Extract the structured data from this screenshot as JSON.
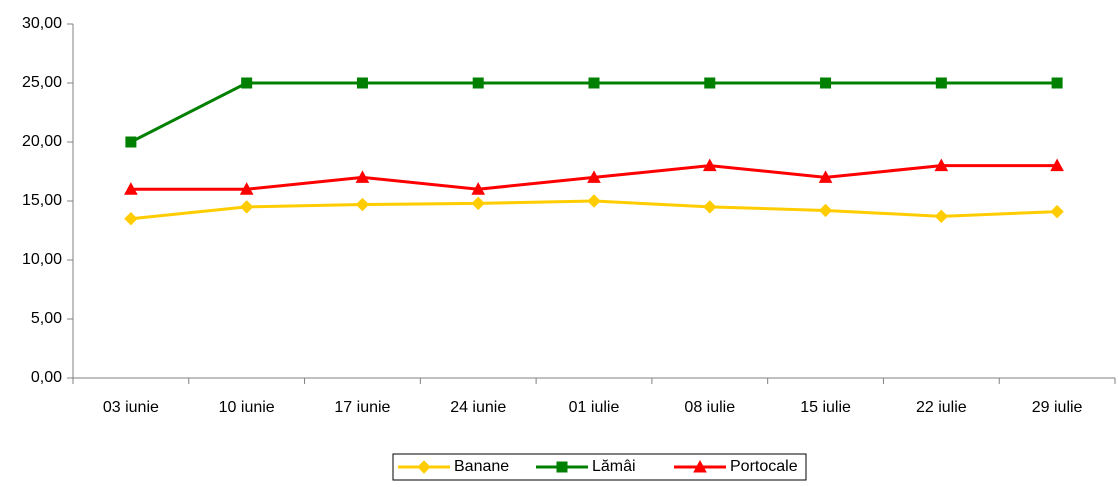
{
  "chart_data": {
    "type": "line",
    "categories": [
      "03 iunie",
      "10 iunie",
      "17 iunie",
      "24 iunie",
      "01 iulie",
      "08 iulie",
      "15 iulie",
      "22 iulie",
      "29 iulie"
    ],
    "series": [
      {
        "name": "Banane",
        "color": "#ffcc00",
        "marker": "diamond",
        "values": [
          13.5,
          14.5,
          14.7,
          14.8,
          15.0,
          14.5,
          14.2,
          13.7,
          14.1
        ]
      },
      {
        "name": "Lămâi",
        "color": "#008000",
        "marker": "square",
        "values": [
          20,
          25,
          25,
          25,
          25,
          25,
          25,
          25,
          25
        ]
      },
      {
        "name": "Portocale",
        "color": "#ff0000",
        "marker": "triangle",
        "values": [
          16,
          16,
          17,
          16,
          17,
          18,
          17,
          18,
          18
        ]
      }
    ],
    "ylim": [
      0,
      30
    ],
    "yticks": [
      {
        "value": 0,
        "label": "0,00"
      },
      {
        "value": 5,
        "label": "5,00"
      },
      {
        "value": 10,
        "label": "10,00"
      },
      {
        "value": 15,
        "label": "15,00"
      },
      {
        "value": 20,
        "label": "20,00"
      },
      {
        "value": 25,
        "label": "25,00"
      },
      {
        "value": 30,
        "label": "30,00"
      }
    ],
    "grid": false,
    "legend": "bottom"
  }
}
